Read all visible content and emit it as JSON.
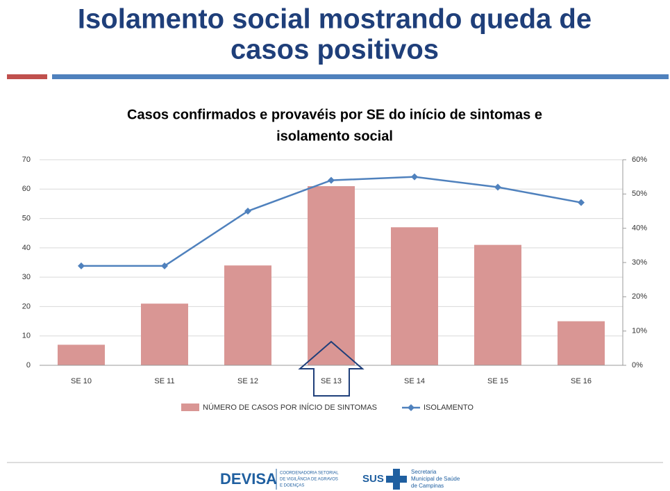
{
  "slide_title_lines": [
    "Isolamento social mostrando queda de",
    "casos positivos"
  ],
  "chart_data": {
    "type": "bar",
    "title_lines": [
      "Casos confirmados e provavéis por  SE do início de sintomas e",
      "isolamento social"
    ],
    "categories": [
      "SE 10",
      "SE 11",
      "SE 12",
      "SE 13",
      "SE 14",
      "SE 15",
      "SE 16"
    ],
    "series": [
      {
        "name": "NÚMERO DE CASOS POR INÍCIO DE SINTOMAS",
        "type": "bar",
        "color": "#d99694",
        "values": [
          7,
          21,
          34,
          61,
          47,
          41,
          15
        ]
      },
      {
        "name": "ISOLAMENTO",
        "type": "line",
        "axis": "y2",
        "color": "#4f81bd",
        "values": [
          29,
          29,
          45,
          54,
          55,
          52,
          47.5
        ]
      }
    ],
    "ylim": [
      0,
      70
    ],
    "yticks": [
      0,
      10,
      20,
      30,
      40,
      50,
      60,
      70
    ],
    "y2lim": [
      0,
      60
    ],
    "y2ticks": [
      {
        "value": 0,
        "label": "0%"
      },
      {
        "value": 10,
        "label": "10%"
      },
      {
        "value": 20,
        "label": "20%"
      },
      {
        "value": 30,
        "label": "30%"
      },
      {
        "value": 40,
        "label": "40%"
      },
      {
        "value": 50,
        "label": "50%"
      },
      {
        "value": 60,
        "label": "60%"
      }
    ],
    "grid": true,
    "legend": "bottom"
  },
  "footer": {
    "devisa": "DEVISA",
    "devisa_sub_lines": [
      "COORDENADORIA SETORIAL",
      "DE VIGILÂNCIA DE AGRAVOS",
      "E DOENÇAS"
    ],
    "sus": "SUS",
    "secretaria_lines": [
      "Secretaria",
      "Municipal de Saúde",
      "de Campinas"
    ]
  }
}
